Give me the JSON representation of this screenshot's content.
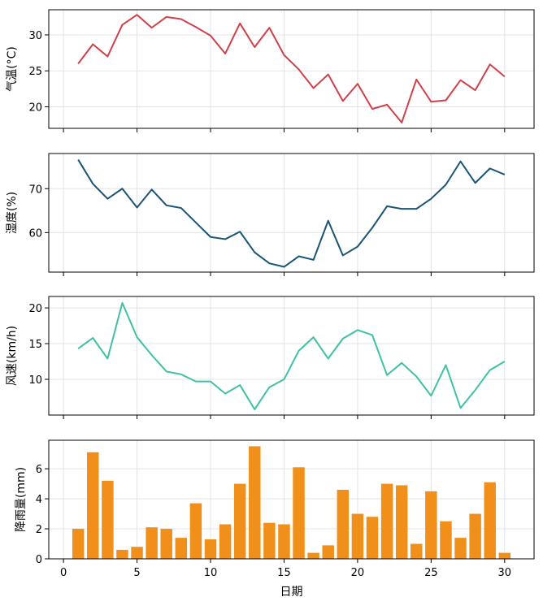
{
  "chart_data": [
    {
      "type": "line",
      "ylabel": "气温(°C)",
      "xlabel": "",
      "xlim": [
        -1,
        32
      ],
      "ylim": [
        17,
        33.5
      ],
      "yticks": [
        20,
        25,
        30
      ],
      "xticks": [
        0,
        5,
        10,
        15,
        20,
        25,
        30
      ],
      "grid": true,
      "color": "#d1404a",
      "x": [
        1,
        2,
        3,
        4,
        5,
        6,
        7,
        8,
        9,
        10,
        11,
        12,
        13,
        14,
        15,
        16,
        17,
        18,
        19,
        20,
        21,
        22,
        23,
        24,
        25,
        26,
        27,
        28,
        29,
        30
      ],
      "values": [
        26.0,
        28.7,
        27.0,
        31.4,
        32.8,
        31.0,
        32.5,
        32.2,
        31.1,
        29.9,
        27.4,
        31.6,
        28.3,
        31.0,
        27.2,
        25.2,
        22.6,
        24.5,
        20.8,
        23.2,
        19.7,
        20.3,
        17.8,
        23.8,
        20.7,
        20.9,
        23.7,
        22.3,
        25.9,
        24.2
      ]
    },
    {
      "type": "line",
      "ylabel": "湿度(%)",
      "xlabel": "",
      "xlim": [
        -1,
        32
      ],
      "ylim": [
        51,
        78
      ],
      "yticks": [
        60,
        70
      ],
      "xticks": [
        0,
        5,
        10,
        15,
        20,
        25,
        30
      ],
      "grid": true,
      "color": "#1a5574",
      "x": [
        1,
        2,
        3,
        4,
        5,
        6,
        7,
        8,
        9,
        10,
        11,
        12,
        13,
        14,
        15,
        16,
        17,
        18,
        19,
        20,
        21,
        22,
        23,
        24,
        25,
        26,
        27,
        28,
        29,
        30
      ],
      "values": [
        76.6,
        71.1,
        67.7,
        70.0,
        65.7,
        69.8,
        66.2,
        65.6,
        62.3,
        59.0,
        58.5,
        60.2,
        55.5,
        53.0,
        52.2,
        54.6,
        53.8,
        62.7,
        54.8,
        56.8,
        61.1,
        66.0,
        65.4,
        65.4,
        67.7,
        70.9,
        76.2,
        71.3,
        74.6,
        73.2
      ]
    },
    {
      "type": "line",
      "ylabel": "风速(km/h)",
      "xlabel": "",
      "xlim": [
        -1,
        32
      ],
      "ylim": [
        5,
        21.6
      ],
      "yticks": [
        10,
        15,
        20
      ],
      "xticks": [
        0,
        5,
        10,
        15,
        20,
        25,
        30
      ],
      "grid": true,
      "color": "#3fc1a3",
      "x": [
        1,
        2,
        3,
        4,
        5,
        6,
        7,
        8,
        9,
        10,
        11,
        12,
        13,
        14,
        15,
        16,
        17,
        18,
        19,
        20,
        21,
        22,
        23,
        24,
        25,
        26,
        27,
        28,
        29,
        30
      ],
      "values": [
        14.3,
        15.8,
        12.9,
        20.7,
        15.9,
        13.4,
        11.1,
        10.7,
        9.7,
        9.7,
        8.0,
        9.2,
        5.8,
        8.9,
        10.0,
        14.0,
        15.9,
        12.9,
        15.7,
        16.9,
        16.2,
        10.6,
        12.3,
        10.4,
        7.7,
        12.0,
        6.0,
        8.5,
        11.3,
        12.5
      ]
    },
    {
      "type": "bar",
      "ylabel": "降雨量(mm)",
      "xlabel": "日期",
      "xlim": [
        -1,
        32
      ],
      "ylim": [
        0,
        7.9
      ],
      "yticks": [
        0,
        2,
        4,
        6
      ],
      "xticks": [
        0,
        5,
        10,
        15,
        20,
        25,
        30
      ],
      "grid": true,
      "color": "#f0901a",
      "categories": [
        1,
        2,
        3,
        4,
        5,
        6,
        7,
        8,
        9,
        10,
        11,
        12,
        13,
        14,
        15,
        16,
        17,
        18,
        19,
        20,
        21,
        22,
        23,
        24,
        25,
        26,
        27,
        28,
        29,
        30
      ],
      "values": [
        2.0,
        7.1,
        5.2,
        0.6,
        0.8,
        2.1,
        2.0,
        1.4,
        3.7,
        1.3,
        2.3,
        5.0,
        7.5,
        2.4,
        2.3,
        6.1,
        0.4,
        0.9,
        4.6,
        3.0,
        2.8,
        5.0,
        4.9,
        1.0,
        4.5,
        2.5,
        1.4,
        3.0,
        5.1,
        0.4
      ]
    }
  ]
}
